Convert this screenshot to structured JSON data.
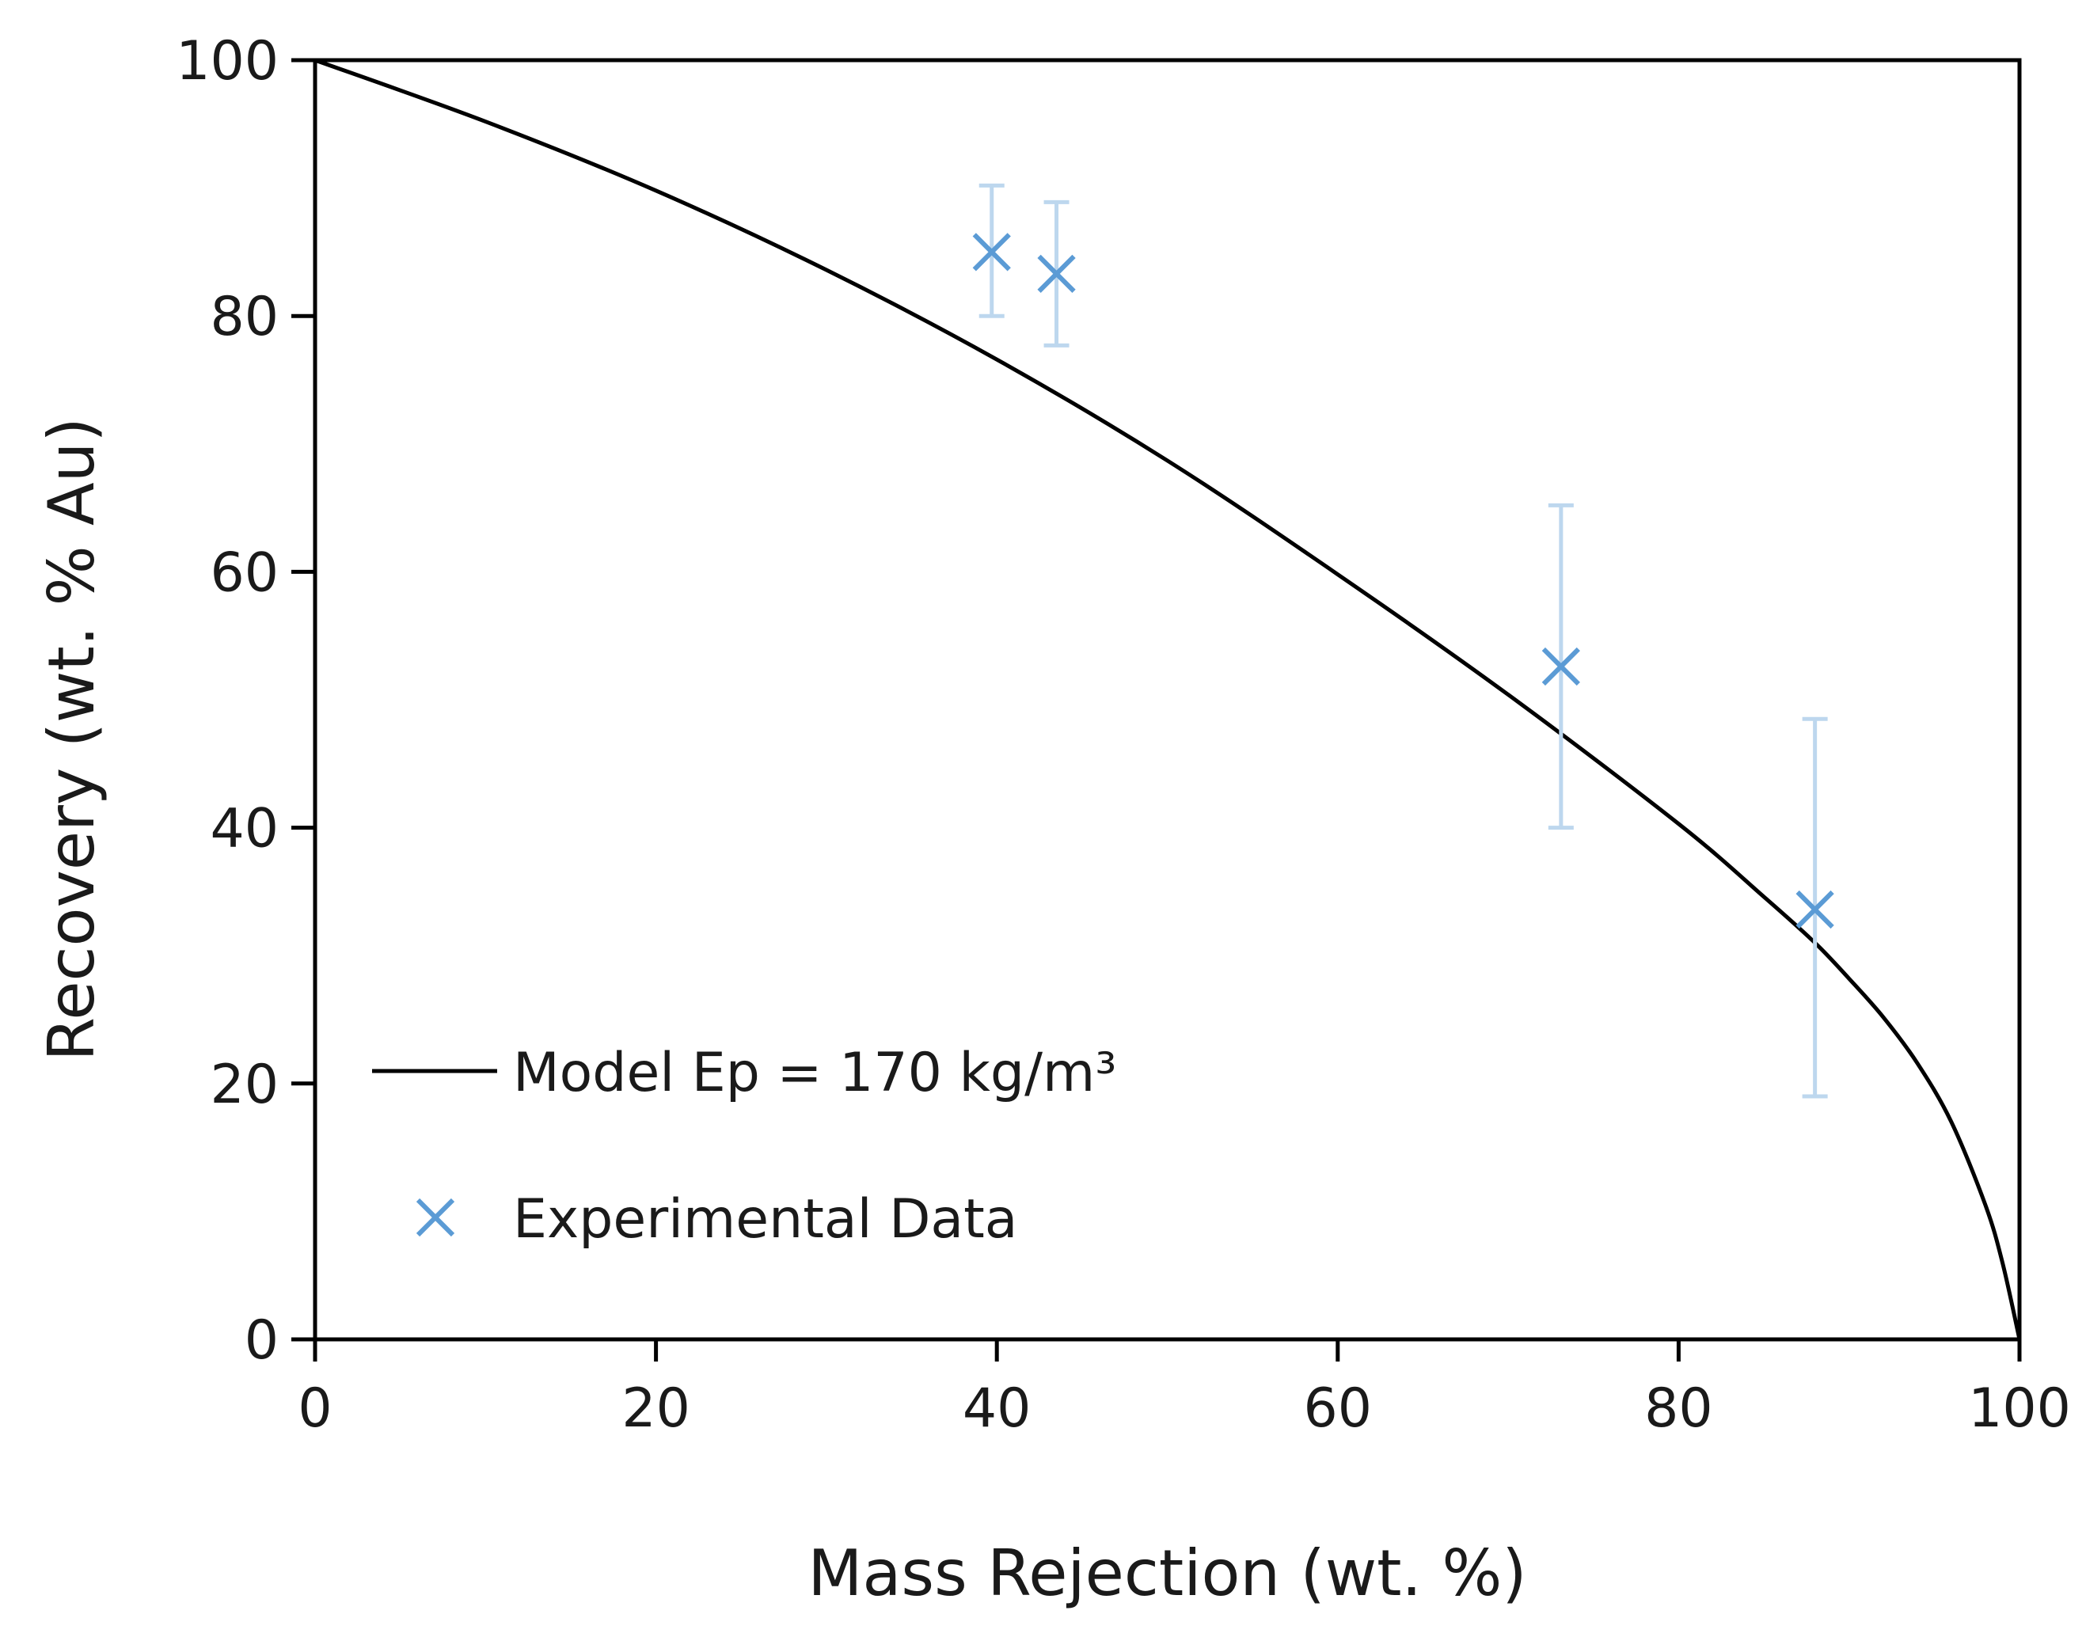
{
  "chart_data": {
    "type": "scatter",
    "title": "",
    "xlabel": "Mass Rejection (wt. %)",
    "ylabel": "Recovery (wt. % Au)",
    "xlim": [
      0,
      100
    ],
    "ylim": [
      0,
      100
    ],
    "xticks": [
      0,
      20,
      40,
      60,
      80,
      100
    ],
    "yticks": [
      0,
      20,
      40,
      60,
      80,
      100
    ],
    "grid": false,
    "legend_position": "bottom-left",
    "series": [
      {
        "name": "Model Ep = 170 kg/m³",
        "kind": "line",
        "color": "#000000",
        "x": [
          0,
          10,
          20,
          30,
          40,
          50,
          60,
          70,
          80,
          85,
          88,
          90,
          92,
          94,
          96,
          98,
          99,
          100
        ],
        "y": [
          100,
          95.2,
          89.8,
          83.6,
          76.6,
          68.7,
          59.8,
          50.4,
          40.3,
          34.6,
          31.0,
          28.2,
          25.2,
          21.6,
          17.0,
          10.5,
          6.0,
          0
        ]
      },
      {
        "name": "Experimental Data",
        "kind": "scatter",
        "marker": "x",
        "color": "#5b9bd5",
        "errorbar_color": "#bdd7ee",
        "x": [
          39.7,
          43.5,
          73.1,
          88.0
        ],
        "y": [
          85.0,
          83.3,
          52.6,
          33.6
        ],
        "y_low": [
          80.0,
          77.7,
          40.0,
          19.0
        ],
        "y_high": [
          90.2,
          88.9,
          65.2,
          48.5
        ]
      }
    ]
  }
}
